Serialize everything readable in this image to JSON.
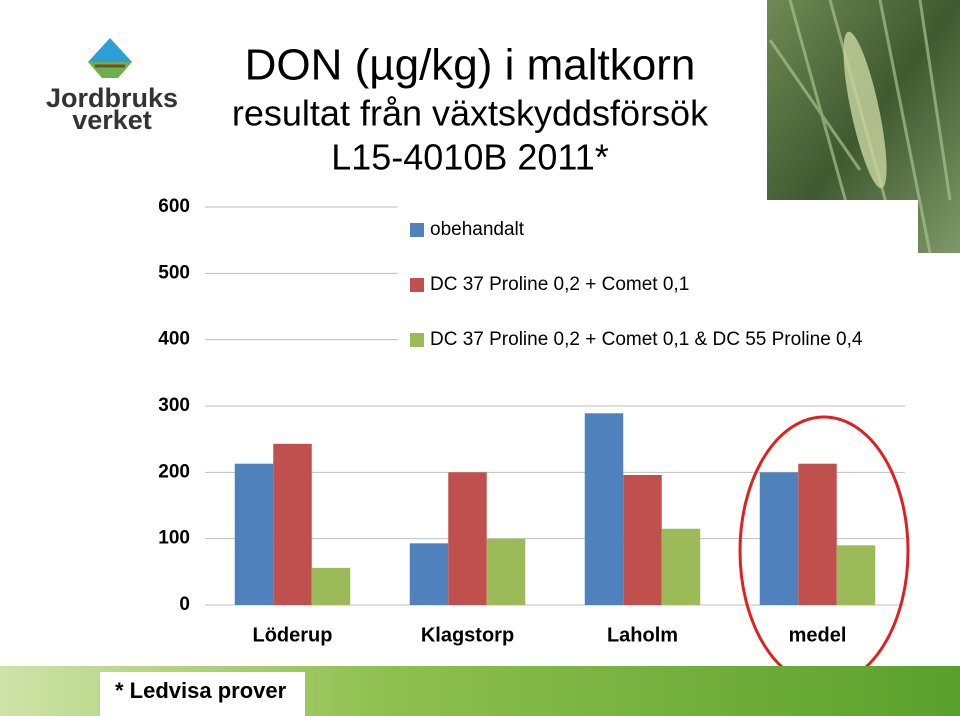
{
  "logo": [
    "Jordbruks",
    "verket"
  ],
  "chart_data": {
    "type": "bar",
    "title": [
      "DON (µg/kg) i maltkorn",
      "resultat från växtskyddsförsök",
      "L15-4010B 2011*"
    ],
    "categories": [
      "Löderup",
      "Klagstorp",
      "Laholm",
      "medel"
    ],
    "series": [
      {
        "name": "obehandalt",
        "color": "#4f81bd",
        "values": [
          213,
          93,
          289,
          200
        ]
      },
      {
        "name": "DC 37 Proline 0,2 + Comet 0,1",
        "color": "#c0504d",
        "values": [
          243,
          200,
          196,
          213
        ]
      },
      {
        "name": "DC 37 Proline 0,2 + Comet 0,1 & DC 55 Proline 0,4",
        "color": "#9bbb59",
        "values": [
          56,
          100,
          115,
          90
        ]
      }
    ],
    "ylim": [
      0,
      600
    ],
    "yticks": [
      0,
      100,
      200,
      300,
      400,
      500,
      600
    ],
    "grid": true,
    "legend": "top-right",
    "footnote": "* Ledvisa prover"
  }
}
